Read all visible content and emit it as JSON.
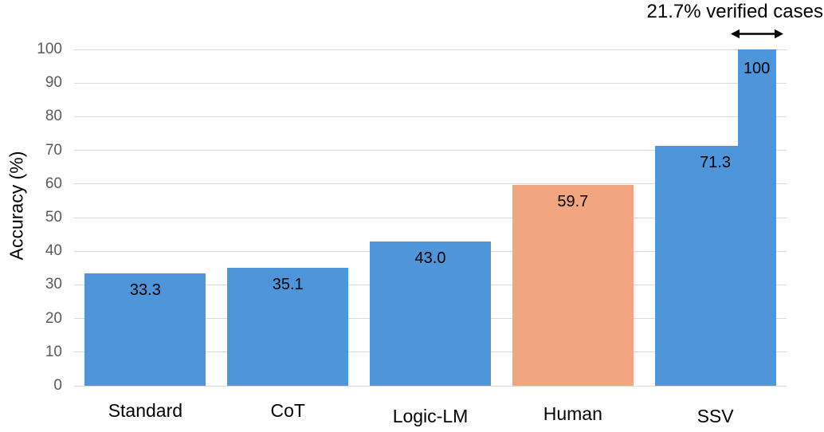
{
  "chart_data": {
    "type": "bar",
    "title": "",
    "ylabel": "Accuracy (%)",
    "xlabel": "",
    "ylim": [
      0,
      100
    ],
    "yticks": [
      0,
      10,
      20,
      30,
      40,
      50,
      60,
      70,
      80,
      90,
      100
    ],
    "grid": true,
    "legend": "none",
    "categories": [
      "Standard",
      "CoT",
      "Logic-LM",
      "Human",
      "SSV"
    ],
    "values": [
      33.3,
      35.1,
      43.0,
      59.7,
      71.3
    ],
    "value_labels": [
      "33.3",
      "35.1",
      "43.0",
      "59.7",
      "71.3"
    ],
    "bar_colors": [
      "#4E95D9",
      "#4E95D9",
      "#4E95D9",
      "#F2A67F",
      "#4E95D9"
    ],
    "extra_bar": {
      "category_index": 4,
      "value": 100,
      "label": "100",
      "color": "#4E95D9"
    },
    "annotation": {
      "text": "21.7% verified cases",
      "arrow": "double-headed-horizontal"
    },
    "label_y_offsets": [
      0,
      0,
      7,
      4,
      7
    ]
  },
  "colors": {
    "bar_blue": "#4E95D9",
    "bar_orange": "#F2A67F",
    "gridline": "#D9D9D9",
    "tick_text": "#595959",
    "text": "#000000",
    "background": "#FFFFFF"
  }
}
